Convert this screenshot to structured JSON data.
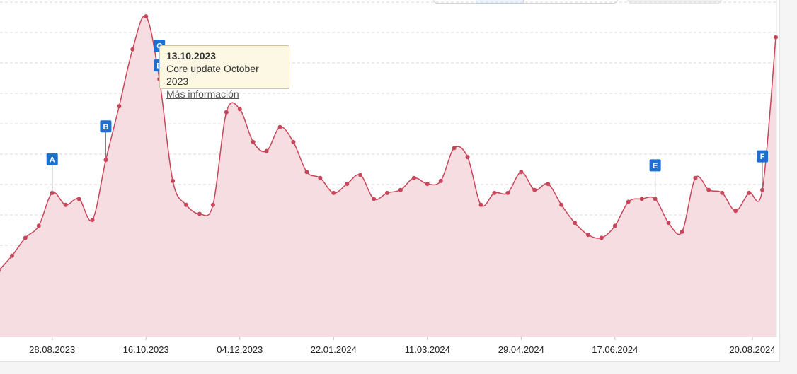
{
  "chart_data": {
    "type": "area",
    "x_tick_labels": [
      "28.08.2023",
      "16.10.2023",
      "04.12.2023",
      "22.01.2024",
      "11.03.2024",
      "29.04.2024",
      "17.06.2024",
      "20.08.2024"
    ],
    "series": [
      {
        "color": "#c8465a",
        "fill": "#f5dde1",
        "values": [
          22,
          27,
          33,
          37,
          48,
          44,
          46,
          39,
          59,
          77,
          96,
          107,
          86,
          52,
          44,
          41,
          44,
          75,
          76,
          65,
          62,
          70,
          65,
          55,
          53,
          48,
          51,
          54,
          46,
          48,
          49,
          53,
          51,
          52,
          63,
          60,
          44,
          48,
          48,
          55,
          49,
          51,
          44,
          38,
          34,
          33,
          37,
          45,
          46,
          46,
          38,
          35,
          53,
          49,
          48,
          42,
          48,
          49,
          100
        ]
      }
    ],
    "grid": true,
    "markers": [
      {
        "label": "A",
        "point_index": 4
      },
      {
        "label": "B",
        "point_index": 8
      },
      {
        "label": "C",
        "point_index": 12
      },
      {
        "label": "D",
        "point_index": 12
      },
      {
        "label": "E",
        "point_index": 49
      },
      {
        "label": "F",
        "point_index": 57
      }
    ],
    "tooltip": {
      "date": "13.10.2023",
      "text": "Core update October 2023",
      "link": "Más información"
    }
  }
}
